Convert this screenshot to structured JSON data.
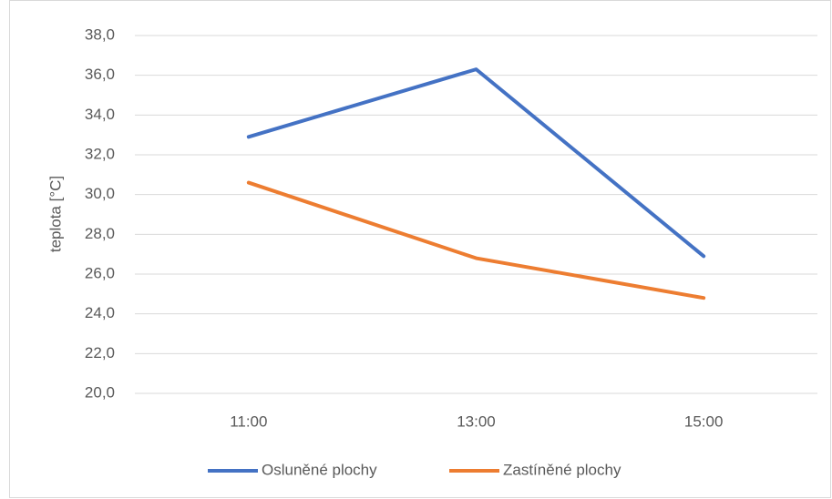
{
  "chart_data": {
    "type": "line",
    "y_label": "teplota [°C]",
    "categories": [
      "11:00",
      "13:00",
      "15:00"
    ],
    "series": [
      {
        "name": "Osluněné plochy",
        "color": "#4472c4",
        "values": [
          32.9,
          36.3,
          26.9
        ]
      },
      {
        "name": "Zastíněné plochy",
        "color": "#ed7d31",
        "values": [
          30.6,
          26.8,
          24.8
        ]
      }
    ],
    "ylim": [
      20,
      38
    ],
    "yticks": [
      {
        "value": 20,
        "label": "20,0"
      },
      {
        "value": 22,
        "label": "22,0"
      },
      {
        "value": 24,
        "label": "24,0"
      },
      {
        "value": 26,
        "label": "26,0"
      },
      {
        "value": 28,
        "label": "28,0"
      },
      {
        "value": 30,
        "label": "30,0"
      },
      {
        "value": 32,
        "label": "32,0"
      },
      {
        "value": 34,
        "label": "34,0"
      },
      {
        "value": 36,
        "label": "36,0"
      },
      {
        "value": 38,
        "label": "38,0"
      }
    ],
    "grid": true,
    "legend": "bottom"
  }
}
